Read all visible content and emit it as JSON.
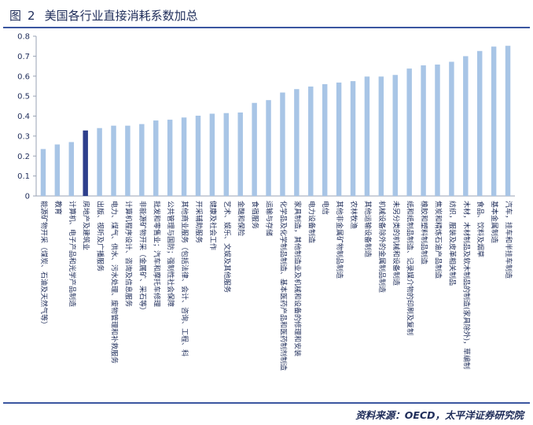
{
  "figure": {
    "title_prefix": "图",
    "title_number": "2",
    "title": "美国各行业直接消耗系数加总",
    "source": "资料来源：OECD，太平洋证券研究院"
  },
  "colors": {
    "bar": "#a8c5e6",
    "highlight": "#2e3f8c",
    "axis": "#9aa3b5",
    "text": "#1f2d5a",
    "rule": "#3b56a0"
  },
  "chart_data": {
    "type": "bar",
    "title": "",
    "xlabel": "",
    "ylabel": "",
    "ylim": [
      0,
      0.8
    ],
    "yticks": [
      "0",
      "0.1",
      "0.2",
      "0.3",
      "0.4",
      "0.5",
      "0.6",
      "0.7",
      "0.8"
    ],
    "grid": false,
    "legend": "none",
    "highlight_category": "房地产及建筑业",
    "categories": [
      "能源矿物开采（煤炭、石油及天然气等）",
      "教育",
      "计算机、电子产品和光学产品制造",
      "房地产及建筑业",
      "出版、视听及广播服务",
      "电力、煤气、供水、污水处理、废物管理和补救服务",
      "计算机程序设计、咨询及信息服务",
      "非能源矿物开采（金属矿、采石等）",
      "批发和零售业；汽车和摩托车修理",
      "公共管理与国防；强制性社会保障",
      "其他商业服务（包括法律、会计、咨询、工程、科",
      "开采辅助服务",
      "健康及社会工作",
      "艺术、娱乐、文娱及其他服务",
      "金融和保险",
      "食宿服务",
      "运输与存储",
      "化学品及化学制品制造、基本医药产品和医药制剂制造",
      "家具制造，其他制造业及机械和设备的修理和安装",
      "电力设备制造",
      "电信",
      "其他非金属矿物制品制造",
      "农林牧渔",
      "其他运输设备制造",
      "机械设备除外的金属制品制造",
      "未另分类的机械和设备制造",
      "纸和纸制品制造、记录媒介物的印刷及复制",
      "橡胶和塑料制品制造",
      "焦炭和精炼石油产品制造",
      "纺织，服装及皮革相关制品",
      "木材，木材制品及软木制品的制造(家具除外)，草编制",
      "食品、饮料及烟草",
      "基本金属制造",
      "汽车，挂车和半挂车制造"
    ],
    "values": [
      0.235,
      0.258,
      0.27,
      0.328,
      0.34,
      0.352,
      0.352,
      0.36,
      0.378,
      0.382,
      0.393,
      0.402,
      0.412,
      0.415,
      0.418,
      0.466,
      0.48,
      0.518,
      0.535,
      0.548,
      0.56,
      0.568,
      0.575,
      0.598,
      0.598,
      0.606,
      0.638,
      0.654,
      0.658,
      0.672,
      0.7,
      0.726,
      0.748,
      0.752
    ]
  }
}
